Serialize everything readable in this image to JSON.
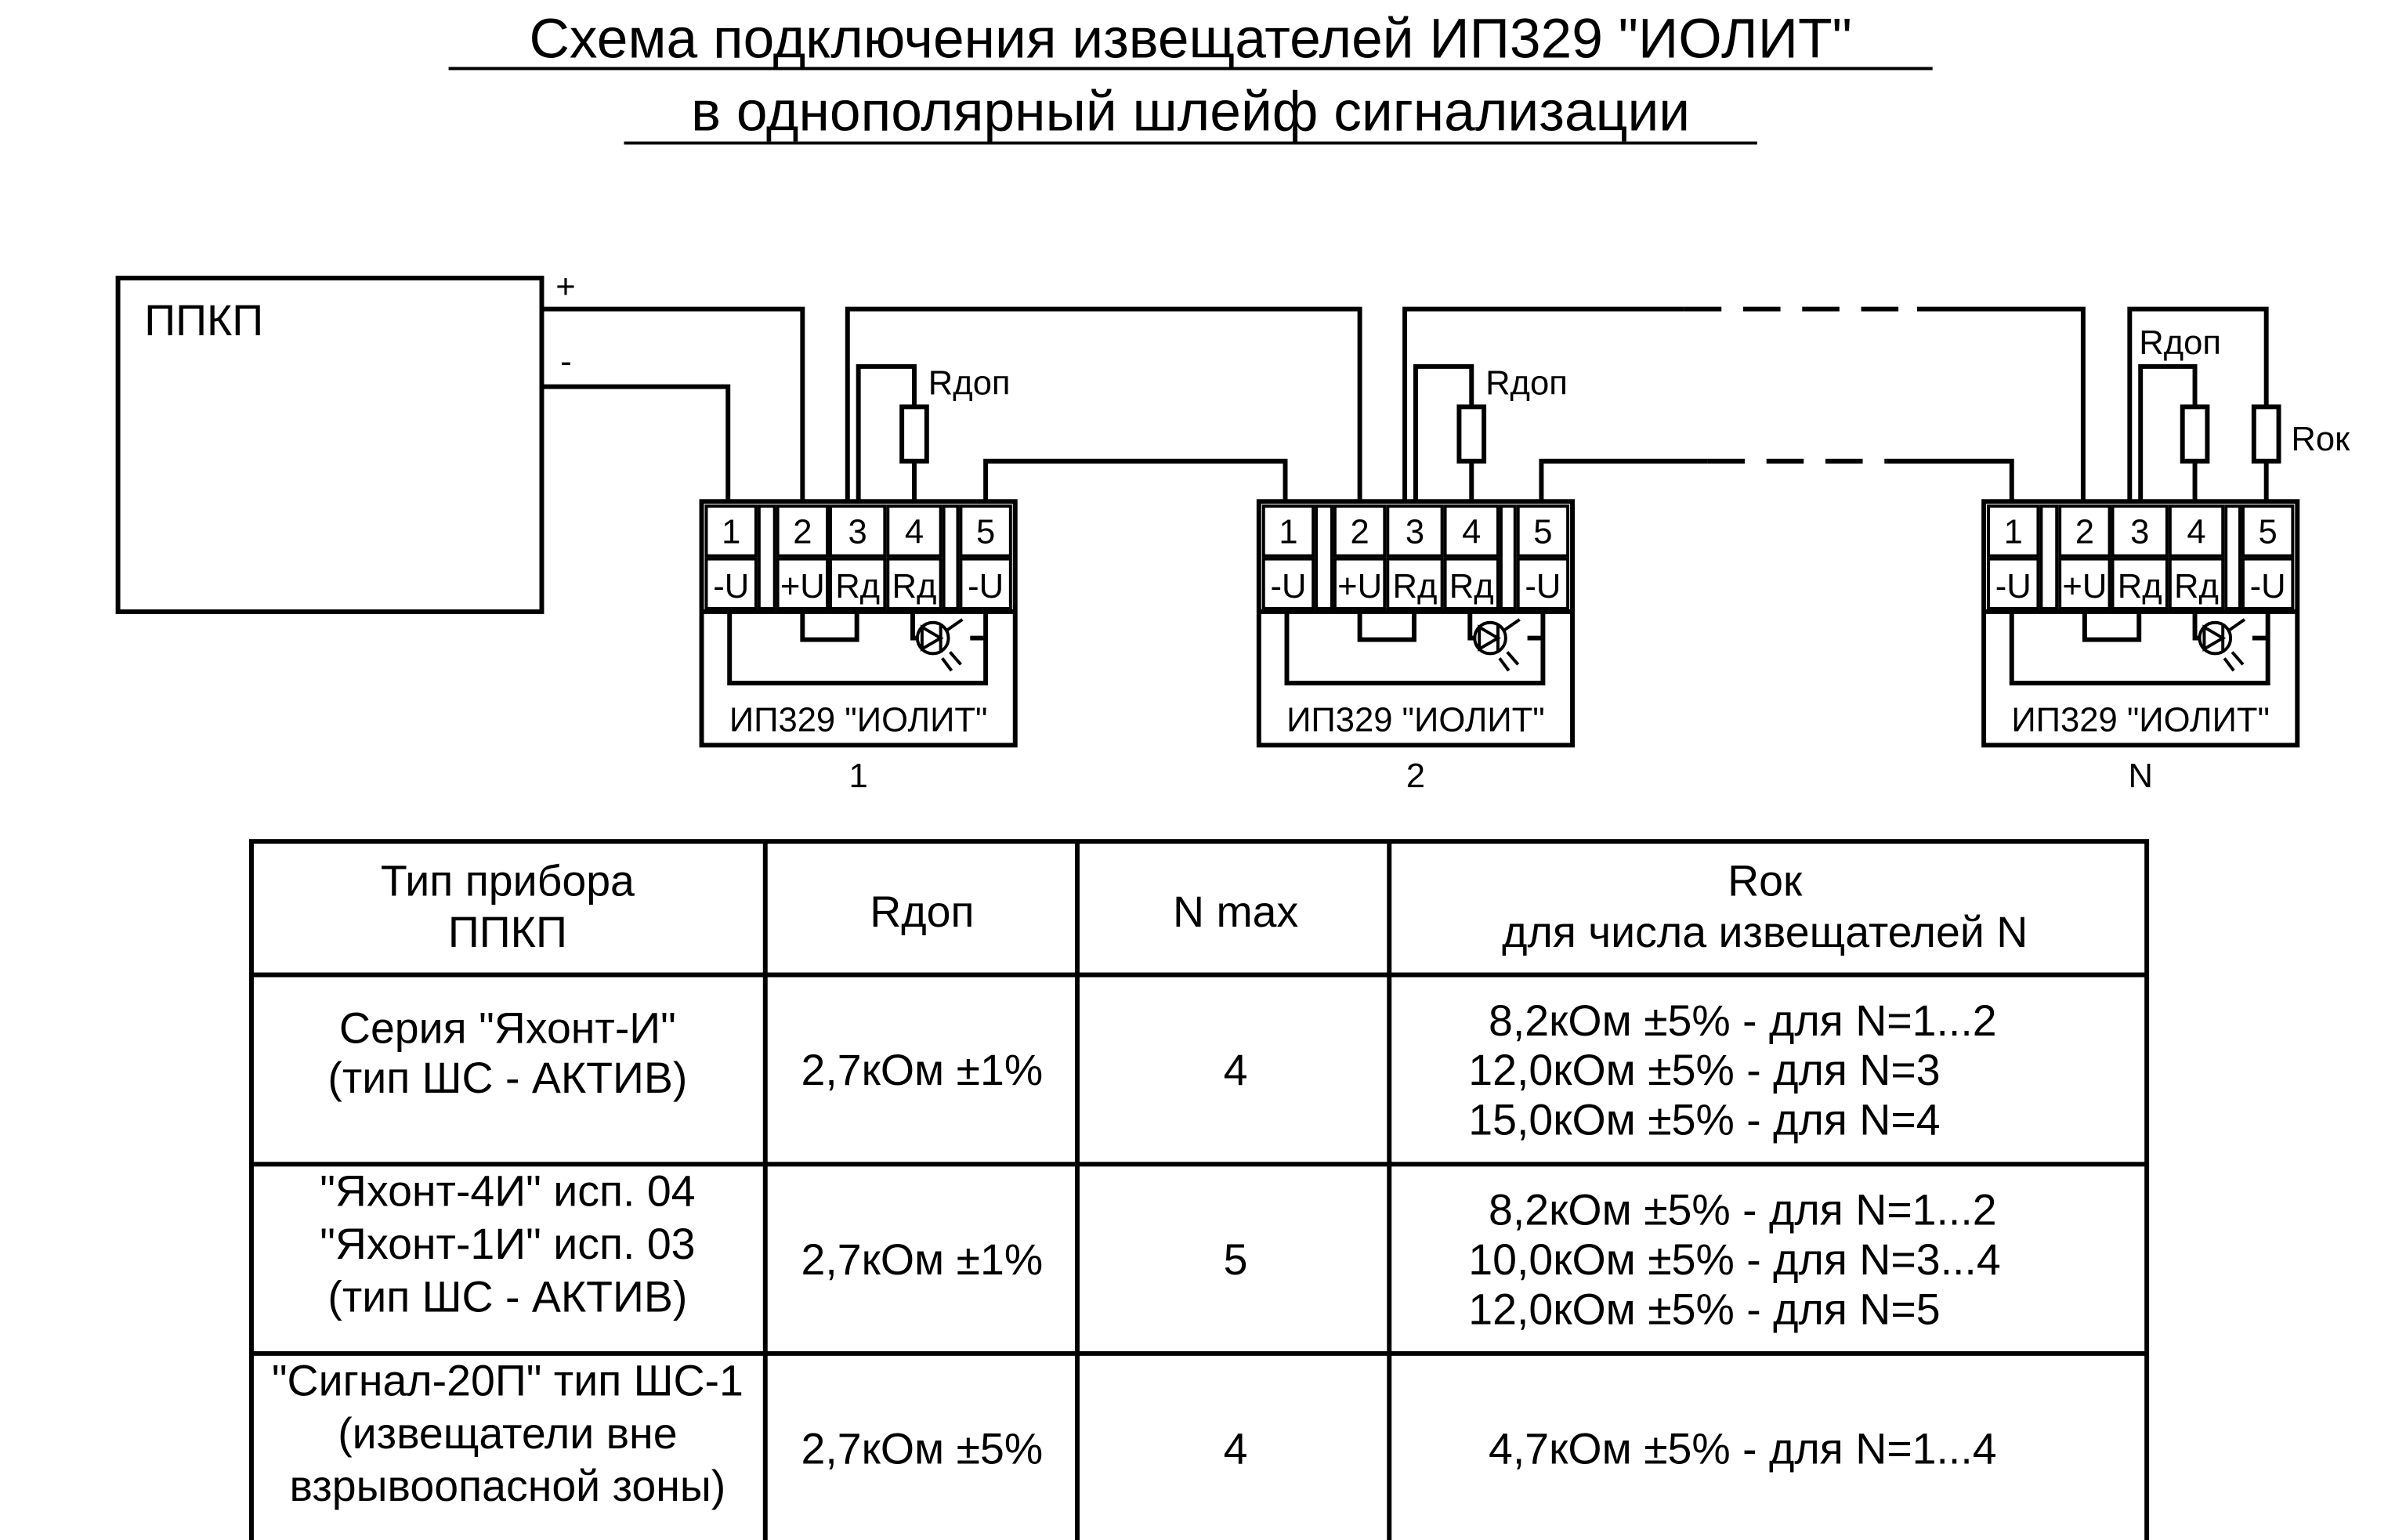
{
  "title": {
    "line1": "Схема подключения извещателей ИП329 \"ИОЛИТ\"",
    "line2": "в однополярный шлейф сигнализации"
  },
  "panel": {
    "label": "ППКП",
    "plus": "+",
    "minus": "-"
  },
  "detector": {
    "model": "ИП329 \"ИОЛИТ\"",
    "terminal_numbers": [
      "1",
      "2",
      "3",
      "4",
      "5"
    ],
    "terminal_labels": [
      "-U",
      "+U",
      "Rд",
      "Rд",
      "-U"
    ]
  },
  "detectors": [
    {
      "index_label": "1"
    },
    {
      "index_label": "2"
    },
    {
      "index_label": "N"
    }
  ],
  "resistors": {
    "rdop": "Rдоп",
    "rok": "Rок"
  },
  "table": {
    "headers": [
      [
        "Тип прибора",
        "ППКП"
      ],
      [
        "Rдоп"
      ],
      [
        "N max"
      ],
      [
        "Rок",
        "для числа извещателей N"
      ]
    ],
    "rows": [
      {
        "device": [
          "Серия \"Яхонт-И\"",
          "(тип ШС - АКТИВ)"
        ],
        "rdop": "2,7кОм ±1%",
        "nmax": "4",
        "rok": [
          "8,2кОм ±5% - для N=1...2",
          "12,0кОм ±5% - для N=3",
          "15,0кОм ±5% - для N=4"
        ]
      },
      {
        "device": [
          "\"Яхонт-4И\" исп. 04",
          "\"Яхонт-1И\" исп. 03",
          "(тип ШС - АКТИВ)"
        ],
        "rdop": "2,7кОм ±1%",
        "nmax": "5",
        "rok": [
          "8,2кОм ±5% - для N=1...2",
          "10,0кОм ±5% - для N=3...4",
          "12,0кОм ±5% - для N=5"
        ]
      },
      {
        "device": [
          "\"Сигнал-20П\" тип ШС-1",
          "(извещатели вне",
          "взрывоопасной зоны)"
        ],
        "rdop": "2,7кОм ±5%",
        "nmax": "4",
        "rok": [
          "4,7кОм ±5% - для N=1...4"
        ]
      }
    ]
  }
}
